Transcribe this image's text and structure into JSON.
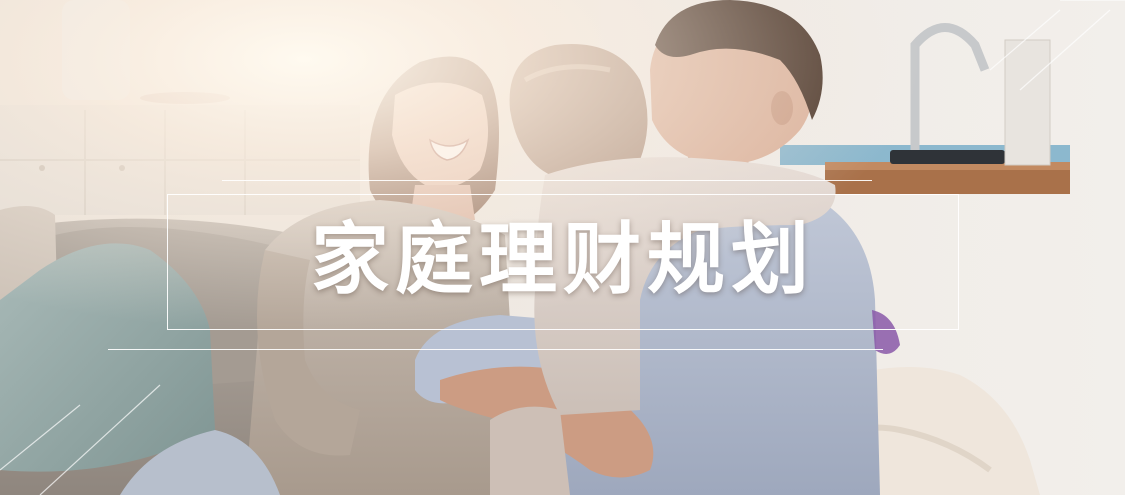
{
  "banner": {
    "title": "家庭理财规划"
  },
  "colors": {
    "title": "#ffffff",
    "frame": "#ffffff",
    "background_warm": "#e9e3dc"
  }
}
